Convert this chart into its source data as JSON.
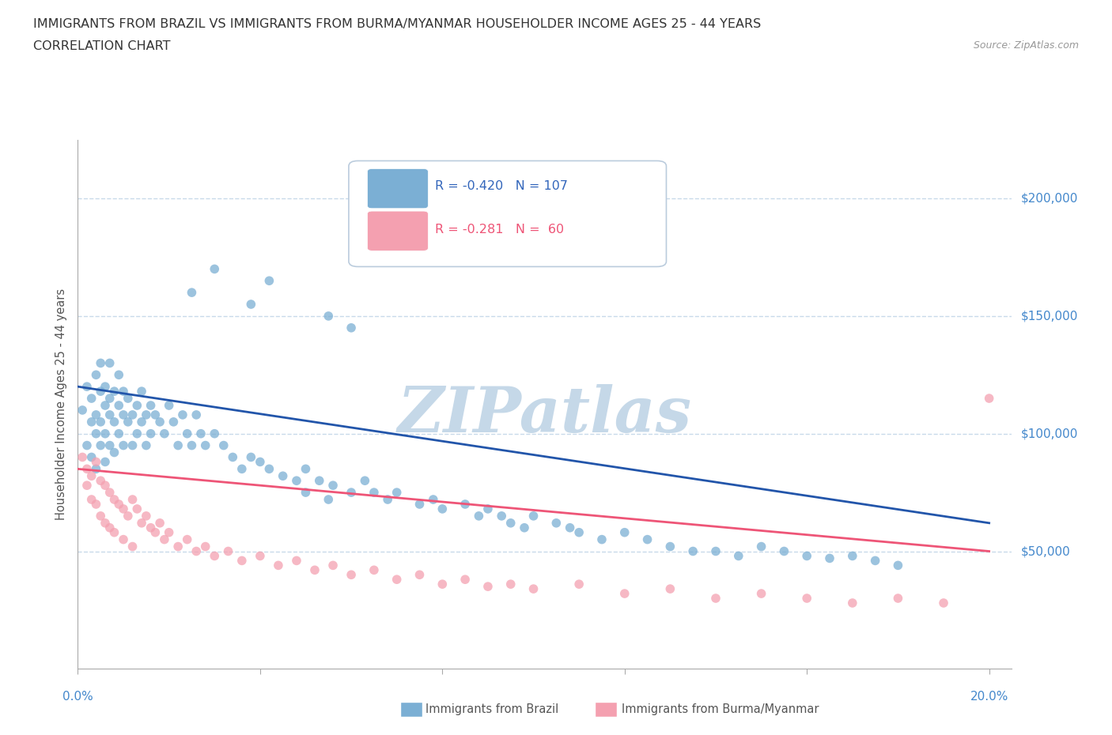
{
  "title_line1": "IMMIGRANTS FROM BRAZIL VS IMMIGRANTS FROM BURMA/MYANMAR HOUSEHOLDER INCOME AGES 25 - 44 YEARS",
  "title_line2": "CORRELATION CHART",
  "source_text": "Source: ZipAtlas.com",
  "ylabel": "Householder Income Ages 25 - 44 years",
  "xlim": [
    0.0,
    0.205
  ],
  "ylim": [
    0,
    225000
  ],
  "ytick_values": [
    50000,
    100000,
    150000,
    200000
  ],
  "ytick_labels": [
    "$50,000",
    "$100,000",
    "$150,000",
    "$200,000"
  ],
  "xtick_values": [
    0.0,
    0.04,
    0.08,
    0.12,
    0.16,
    0.2
  ],
  "grid_color": "#c8daea",
  "background_color": "#ffffff",
  "brazil_color": "#7bafd4",
  "burma_color": "#f4a0b0",
  "brazil_line_color": "#2255aa",
  "burma_line_color": "#ee5577",
  "watermark_color": "#c5d8e8",
  "legend_brazil_R": "-0.420",
  "legend_brazil_N": "107",
  "legend_burma_R": "-0.281",
  "legend_burma_N": " 60",
  "brazil_scatter_x": [
    0.001,
    0.002,
    0.002,
    0.003,
    0.003,
    0.003,
    0.004,
    0.004,
    0.004,
    0.004,
    0.005,
    0.005,
    0.005,
    0.005,
    0.006,
    0.006,
    0.006,
    0.006,
    0.007,
    0.007,
    0.007,
    0.007,
    0.008,
    0.008,
    0.008,
    0.009,
    0.009,
    0.009,
    0.01,
    0.01,
    0.01,
    0.011,
    0.011,
    0.012,
    0.012,
    0.013,
    0.013,
    0.014,
    0.014,
    0.015,
    0.015,
    0.016,
    0.016,
    0.017,
    0.018,
    0.019,
    0.02,
    0.021,
    0.022,
    0.023,
    0.024,
    0.025,
    0.026,
    0.027,
    0.028,
    0.03,
    0.032,
    0.034,
    0.036,
    0.038,
    0.04,
    0.042,
    0.045,
    0.048,
    0.05,
    0.053,
    0.056,
    0.06,
    0.063,
    0.065,
    0.068,
    0.07,
    0.075,
    0.078,
    0.08,
    0.085,
    0.088,
    0.09,
    0.093,
    0.095,
    0.098,
    0.1,
    0.105,
    0.108,
    0.11,
    0.115,
    0.12,
    0.125,
    0.13,
    0.135,
    0.14,
    0.145,
    0.15,
    0.155,
    0.16,
    0.165,
    0.17,
    0.175,
    0.18,
    0.05,
    0.055,
    0.025,
    0.03,
    0.038,
    0.042,
    0.055,
    0.06
  ],
  "brazil_scatter_y": [
    110000,
    95000,
    120000,
    105000,
    115000,
    90000,
    125000,
    100000,
    108000,
    85000,
    118000,
    105000,
    95000,
    130000,
    112000,
    100000,
    88000,
    120000,
    108000,
    95000,
    115000,
    130000,
    105000,
    118000,
    92000,
    112000,
    100000,
    125000,
    108000,
    95000,
    118000,
    105000,
    115000,
    108000,
    95000,
    112000,
    100000,
    105000,
    118000,
    108000,
    95000,
    112000,
    100000,
    108000,
    105000,
    100000,
    112000,
    105000,
    95000,
    108000,
    100000,
    95000,
    108000,
    100000,
    95000,
    100000,
    95000,
    90000,
    85000,
    90000,
    88000,
    85000,
    82000,
    80000,
    85000,
    80000,
    78000,
    75000,
    80000,
    75000,
    72000,
    75000,
    70000,
    72000,
    68000,
    70000,
    65000,
    68000,
    65000,
    62000,
    60000,
    65000,
    62000,
    60000,
    58000,
    55000,
    58000,
    55000,
    52000,
    50000,
    50000,
    48000,
    52000,
    50000,
    48000,
    47000,
    48000,
    46000,
    44000,
    75000,
    72000,
    160000,
    170000,
    155000,
    165000,
    150000,
    145000
  ],
  "burma_scatter_x": [
    0.001,
    0.002,
    0.002,
    0.003,
    0.003,
    0.004,
    0.004,
    0.005,
    0.005,
    0.006,
    0.006,
    0.007,
    0.007,
    0.008,
    0.008,
    0.009,
    0.01,
    0.01,
    0.011,
    0.012,
    0.012,
    0.013,
    0.014,
    0.015,
    0.016,
    0.017,
    0.018,
    0.019,
    0.02,
    0.022,
    0.024,
    0.026,
    0.028,
    0.03,
    0.033,
    0.036,
    0.04,
    0.044,
    0.048,
    0.052,
    0.056,
    0.06,
    0.065,
    0.07,
    0.075,
    0.08,
    0.085,
    0.09,
    0.095,
    0.1,
    0.11,
    0.12,
    0.13,
    0.14,
    0.15,
    0.16,
    0.17,
    0.18,
    0.19,
    0.2
  ],
  "burma_scatter_y": [
    90000,
    85000,
    78000,
    82000,
    72000,
    88000,
    70000,
    80000,
    65000,
    78000,
    62000,
    75000,
    60000,
    72000,
    58000,
    70000,
    68000,
    55000,
    65000,
    72000,
    52000,
    68000,
    62000,
    65000,
    60000,
    58000,
    62000,
    55000,
    58000,
    52000,
    55000,
    50000,
    52000,
    48000,
    50000,
    46000,
    48000,
    44000,
    46000,
    42000,
    44000,
    40000,
    42000,
    38000,
    40000,
    36000,
    38000,
    35000,
    36000,
    34000,
    36000,
    32000,
    34000,
    30000,
    32000,
    30000,
    28000,
    30000,
    28000,
    115000
  ]
}
